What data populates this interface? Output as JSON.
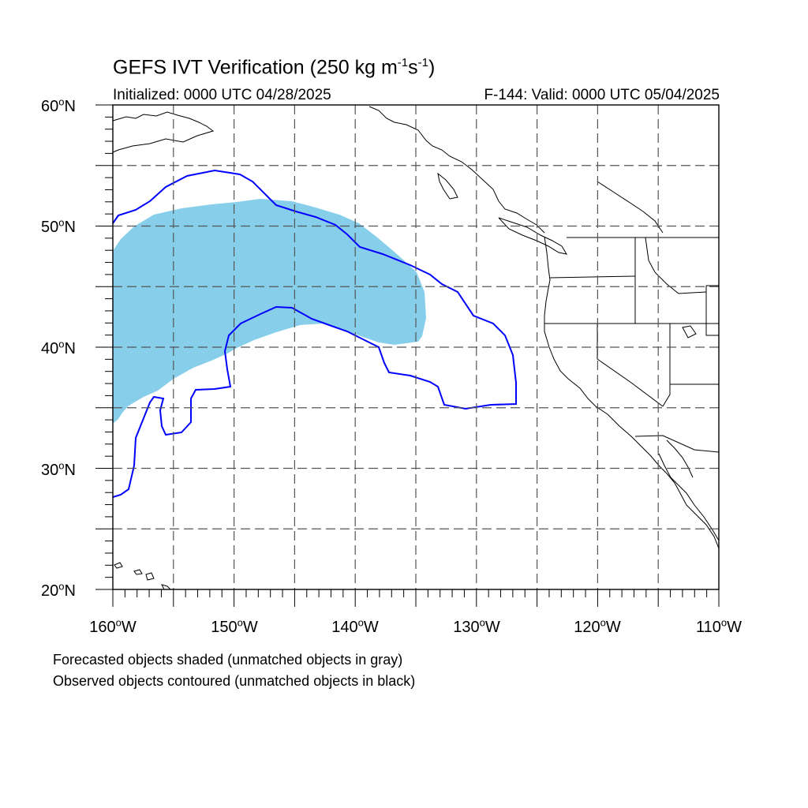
{
  "title": {
    "text": "GEFS IVT Verification (250 kg m",
    "exp1": "-1",
    "mid": "s",
    "exp2": "-1",
    "close": ")"
  },
  "subtitle_left": "Initialized: 0000 UTC 04/28/2025",
  "subtitle_right": "F-144: Valid: 0000 UTC 05/04/2025",
  "lat_ticks": [
    {
      "value": 20,
      "label": "20",
      "suffix": "N"
    },
    {
      "value": 30,
      "label": "30",
      "suffix": "N"
    },
    {
      "value": 40,
      "label": "40",
      "suffix": "N"
    },
    {
      "value": 50,
      "label": "50",
      "suffix": "N"
    },
    {
      "value": 60,
      "label": "60",
      "suffix": "N"
    }
  ],
  "lon_ticks": [
    {
      "value": -160,
      "label": "160",
      "suffix": "W"
    },
    {
      "value": -150,
      "label": "150",
      "suffix": "W"
    },
    {
      "value": -140,
      "label": "140",
      "suffix": "W"
    },
    {
      "value": -130,
      "label": "130",
      "suffix": "W"
    },
    {
      "value": -120,
      "label": "120",
      "suffix": "W"
    },
    {
      "value": -110,
      "label": "110",
      "suffix": "W"
    }
  ],
  "footnotes": [
    "Forecasted objects shaded (unmatched objects in gray)",
    "Observed objects contoured (unmatched objects in black)"
  ],
  "colors": {
    "forecast_fill": "#87ceeb",
    "observed_contour": "#0000ff",
    "coastline": "#000000",
    "gridline": "#555555"
  },
  "map": {
    "lon_range": [
      -160,
      -110
    ],
    "lat_range": [
      20,
      60
    ],
    "grid_dashed": true,
    "grid_step_deg": 5
  }
}
